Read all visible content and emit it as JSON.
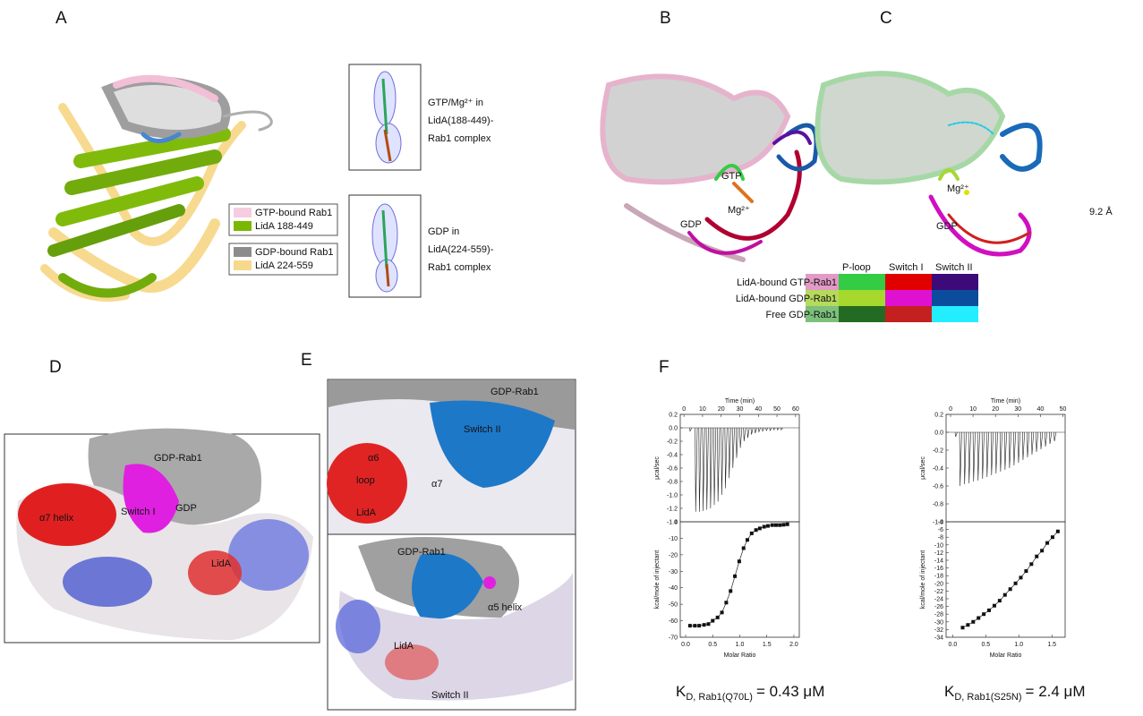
{
  "panels": {
    "A": {
      "label": "A",
      "legend": [
        [
          {
            "text": "GTP-bound Rab1",
            "color": "#f6cde0"
          },
          {
            "text": "LidA 188-449",
            "color": "#7ab800"
          }
        ],
        [
          {
            "text": "GDP-bound Rab1",
            "color": "#8c8c8c"
          },
          {
            "text": "LidA 224-559",
            "color": "#f7d98b"
          }
        ]
      ],
      "density": [
        [
          "GTP/Mg²⁺  in",
          "LidA(188-449)-",
          "Rab1 complex"
        ],
        [
          "GDP in",
          "LidA(224-559)-",
          "Rab1 complex"
        ]
      ]
    },
    "B": {
      "label": "B",
      "labels": [
        "GTP",
        "Mg²⁺",
        "GDP"
      ]
    },
    "C": {
      "label": "C",
      "labels": [
        "Mg²⁺",
        "GDP",
        "9.2 Å"
      ]
    },
    "color_table": {
      "columns": [
        "P-loop",
        "Switch I",
        "Switch II"
      ],
      "rows": [
        {
          "name": "LidA-bound GTP-Rab1",
          "tint": "#e29ac6",
          "colors": [
            "#33cc44",
            "#e00000",
            "#3d0a7a"
          ]
        },
        {
          "name": "LidA-bound GDP-Rab1",
          "tint": "#b6da5c",
          "colors": [
            "#a6d82e",
            "#e010d0",
            "#0b4c9c"
          ]
        },
        {
          "name": "Free GDP-Rab1",
          "tint": "#7cc07c",
          "colors": [
            "#236b23",
            "#c42020",
            "#22eeff"
          ]
        }
      ]
    },
    "D": {
      "label": "D",
      "labels": [
        "GDP-Rab1",
        "Switch I",
        "GDP",
        "α7 helix",
        "LidA"
      ]
    },
    "E": {
      "label": "E",
      "top": [
        "GDP-Rab1",
        "Switch II",
        "α6",
        "loop",
        "α7",
        "LidA"
      ],
      "bottom": [
        "GDP-Rab1",
        "α5 helix",
        "LidA",
        "Switch II"
      ]
    },
    "F": {
      "label": "F",
      "kd": [
        {
          "symbol": "K",
          "subscript": "D, Rab1(Q70L)",
          "value": "= 0.43 μM"
        },
        {
          "symbol": "K",
          "subscript": "D, Rab1(S25N)",
          "value": "= 2.4 μM"
        }
      ]
    }
  },
  "chart_data": [
    {
      "type": "spike",
      "xlabel": "Time (min)",
      "ylabel": "μcal/sec",
      "xlim": [
        -2,
        62
      ],
      "ylim": [
        -1.4,
        0.2
      ],
      "xticks": [
        0,
        10,
        20,
        30,
        40,
        50,
        60
      ],
      "yticks": [
        0.2,
        {
          "value": 0,
          "label": "0.0"
        },
        -0.2,
        -0.4,
        -0.6,
        -0.8,
        {
          "value": -1,
          "label": "-1.0"
        },
        -1.2,
        -1.4
      ],
      "x": [
        3,
        6,
        8,
        10,
        12,
        14,
        16,
        18,
        20,
        22,
        24,
        26,
        28,
        30,
        32,
        34,
        36,
        38,
        40,
        42,
        44,
        46,
        48,
        50,
        52
      ],
      "values": [
        -0.05,
        -1.25,
        -1.25,
        -1.24,
        -1.22,
        -1.2,
        -1.15,
        -1.1,
        -1.0,
        -0.9,
        -0.75,
        -0.6,
        -0.45,
        -0.3,
        -0.2,
        -0.15,
        -0.1,
        -0.08,
        -0.06,
        -0.05,
        -0.04,
        -0.04,
        -0.03,
        -0.03,
        -0.03
      ]
    },
    {
      "type": "scatter",
      "xlabel": "Molar Ratio",
      "ylabel": "kcal/mole of injectant",
      "xlim": [
        -0.1,
        2.1
      ],
      "ylim": [
        -70,
        0
      ],
      "xticks": [
        {
          "value": 0,
          "label": "0.0"
        },
        0.5,
        {
          "value": 1,
          "label": "1.0"
        },
        1.5,
        {
          "value": 2,
          "label": "2.0"
        }
      ],
      "yticks": [
        0,
        -10,
        -20,
        -30,
        -40,
        -50,
        -60,
        -70
      ],
      "x": [
        0.08,
        0.17,
        0.25,
        0.34,
        0.42,
        0.5,
        0.59,
        0.67,
        0.75,
        0.83,
        0.91,
        0.99,
        1.07,
        1.14,
        1.22,
        1.3,
        1.37,
        1.45,
        1.52,
        1.6,
        1.67,
        1.74,
        1.81,
        1.88
      ],
      "values": [
        -63,
        -63,
        -63,
        -62.5,
        -62,
        -60,
        -58,
        -55,
        -49,
        -42,
        -33,
        -24,
        -16,
        -11,
        -7,
        -5,
        -4,
        -3,
        -2.5,
        -2,
        -2,
        -2,
        -1.8,
        -1.5
      ]
    },
    {
      "type": "spike",
      "xlabel": "Time (min)",
      "ylabel": "μcal/sec",
      "xlim": [
        -2,
        51
      ],
      "ylim": [
        -1,
        0.2
      ],
      "xticks": [
        0,
        10,
        20,
        30,
        40,
        50
      ],
      "yticks": [
        0.2,
        {
          "value": 0,
          "label": "0.0"
        },
        -0.2,
        -0.4,
        -0.6,
        -0.8,
        {
          "value": -1,
          "label": "-1.0"
        }
      ],
      "x": [
        2,
        4,
        6,
        8,
        10,
        12,
        14,
        16,
        18,
        20,
        22,
        24,
        26,
        28,
        30,
        32,
        34,
        36,
        38,
        40,
        42,
        44,
        46
      ],
      "values": [
        -0.05,
        -0.6,
        -0.58,
        -0.57,
        -0.55,
        -0.54,
        -0.52,
        -0.5,
        -0.48,
        -0.46,
        -0.44,
        -0.42,
        -0.4,
        -0.37,
        -0.34,
        -0.31,
        -0.28,
        -0.25,
        -0.22,
        -0.19,
        -0.16,
        -0.13,
        -0.1
      ]
    },
    {
      "type": "scatter",
      "xlabel": "Molar Ratio",
      "ylabel": "kcal/mole of injectant",
      "xlim": [
        -0.1,
        1.7
      ],
      "ylim": [
        -34,
        -4
      ],
      "xticks": [
        {
          "value": 0,
          "label": "0.0"
        },
        0.5,
        {
          "value": 1,
          "label": "1.0"
        },
        1.5
      ],
      "yticks": [
        -4,
        -6,
        -8,
        -10,
        -12,
        -14,
        -16,
        -18,
        -20,
        -22,
        -24,
        -26,
        -28,
        -30,
        -32,
        -34
      ],
      "x": [
        0.15,
        0.23,
        0.31,
        0.39,
        0.47,
        0.55,
        0.63,
        0.71,
        0.79,
        0.87,
        0.95,
        1.03,
        1.11,
        1.19,
        1.27,
        1.35,
        1.43,
        1.51,
        1.59
      ],
      "values": [
        -31.5,
        -30.8,
        -30,
        -29,
        -28,
        -27,
        -25.8,
        -24.5,
        -23,
        -21.5,
        -20,
        -18.5,
        -16.8,
        -15,
        -13,
        -11.5,
        -9.5,
        -8,
        -6.5
      ]
    }
  ]
}
